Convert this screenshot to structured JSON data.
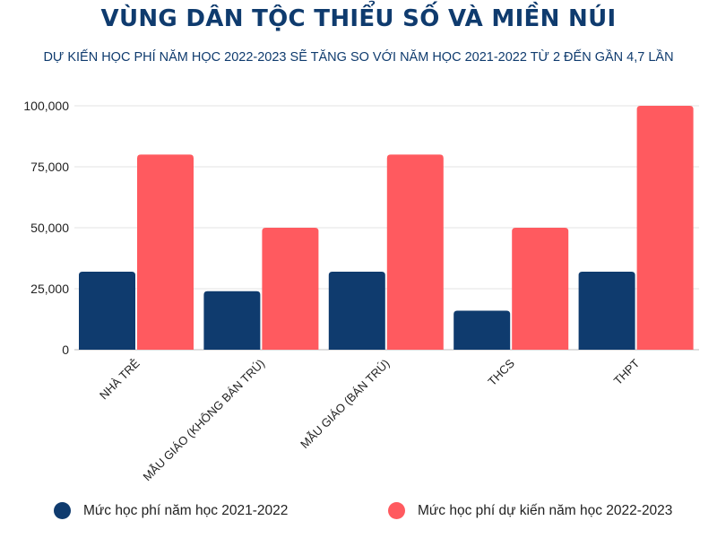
{
  "title": "VÙNG DÂN TỘC THIỂU SỐ VÀ MIỀN NÚI",
  "subtitle": "DỰ KIẾN HỌC PHÍ NĂM HỌC 2022-2023 SẼ TĂNG SO VỚI NĂM HỌC 2021-2022 TỪ 2 ĐẾN GẦN 4,7 LẦN",
  "chart_data": {
    "type": "bar",
    "title": "VÙNG DÂN TỘC THIỂU SỐ VÀ MIỀN NÚI",
    "subtitle": "DỰ KIẾN HỌC PHÍ NĂM HỌC 2022-2023 SẼ TĂNG SO VỚI NĂM HỌC 2021-2022 TỪ 2 ĐẾN GẦN 4,7 LẦN",
    "categories": [
      "NHÀ TRẺ",
      "MẪU GIÁO (KHÔNG BÁN TRÚ)",
      "MẪU GIÁO (BÁN TRÚ)",
      "THCS",
      "THPT"
    ],
    "series": [
      {
        "name": "Mức học phí năm học 2021-2022",
        "color": "#0f3b6e",
        "values": [
          32000,
          24000,
          32000,
          16000,
          32000
        ]
      },
      {
        "name": "Mức học phí dự kiến năm học 2022-2023",
        "color": "#ff5a5f",
        "values": [
          80000,
          50000,
          80000,
          50000,
          100000
        ]
      }
    ],
    "ylim": [
      0,
      100000
    ],
    "yticks": [
      0,
      25000,
      50000,
      75000,
      100000
    ],
    "ytick_labels": [
      "0",
      "25,000",
      "50,000",
      "75,000",
      "100,000"
    ],
    "xlabel": "",
    "ylabel": "",
    "grid": true,
    "legend_position": "bottom"
  }
}
